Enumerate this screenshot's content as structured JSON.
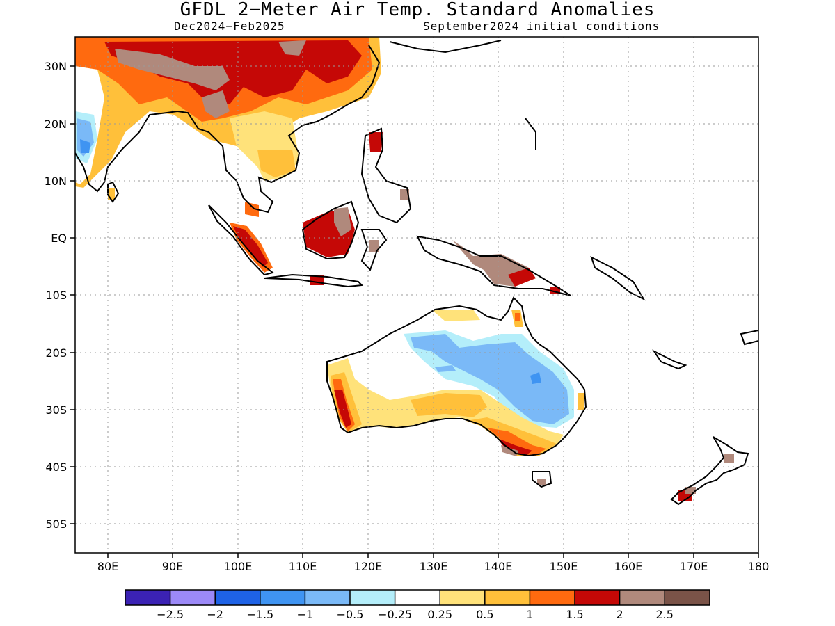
{
  "title": "GFDL 2−Meter Air Temp. Standard Anomalies",
  "subtitle_left": "Dec2024−Feb2025",
  "subtitle_right": "September2024 initial conditions",
  "map": {
    "lon_range": [
      75,
      180
    ],
    "lat_range": [
      -55,
      35
    ],
    "lon_ticks": [
      "80E",
      "90E",
      "100E",
      "110E",
      "120E",
      "130E",
      "140E",
      "150E",
      "160E",
      "170E",
      "180"
    ],
    "lat_ticks": [
      "30N",
      "20N",
      "10N",
      "EQ",
      "10S",
      "20S",
      "30S",
      "40S",
      "50S"
    ],
    "grid": "dotted"
  },
  "colorbar": {
    "colors": [
      "#3b22b4",
      "#9c89f7",
      "#1e62e6",
      "#3f94f2",
      "#7ab9f7",
      "#b4eefa",
      "#ffffff",
      "#ffe27a",
      "#ffc03a",
      "#ff6a0f",
      "#c50806",
      "#b0897c",
      "#7a5348"
    ],
    "labels": [
      "−2.5",
      "−2",
      "−1.5",
      "−1",
      "−0.5",
      "−0.25",
      "0.25",
      "0.5",
      "1",
      "1.5",
      "2",
      "2.5"
    ]
  }
}
